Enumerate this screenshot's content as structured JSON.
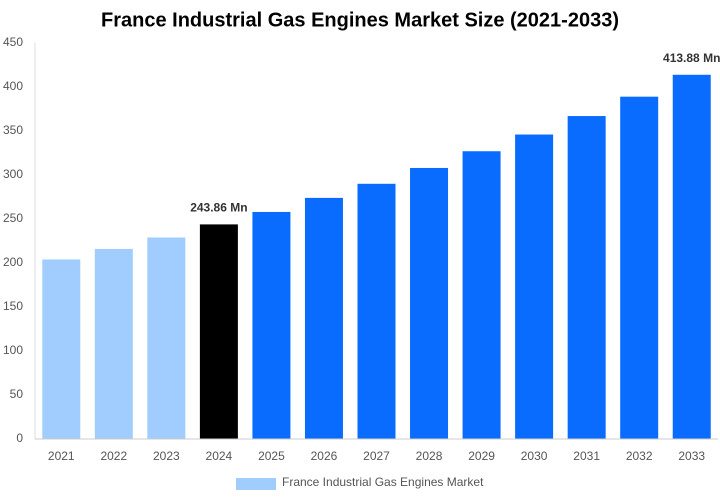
{
  "chart_data": {
    "type": "bar",
    "title": "France Industrial Gas Engines Market Size (2021-2033)",
    "categories": [
      "2021",
      "2022",
      "2023",
      "2024",
      "2025",
      "2026",
      "2027",
      "2028",
      "2029",
      "2030",
      "2031",
      "2032",
      "2033"
    ],
    "series": [
      {
        "name": "France Industrial Gas Engines Market",
        "color": "#a0cdfd",
        "values": [
          204,
          216,
          229,
          243.86,
          258,
          274,
          290,
          308,
          327,
          346,
          367,
          389,
          413.88
        ],
        "value_labels": [
          null,
          null,
          null,
          "243.86 Mn",
          null,
          null,
          null,
          null,
          null,
          null,
          null,
          null,
          "413.88 Mn"
        ],
        "colors": [
          "#a0cdfd",
          "#a0cdfd",
          "#a0cdfd",
          "#000000",
          "#0a6cff",
          "#0a6cff",
          "#0a6cff",
          "#0a6cff",
          "#0a6cff",
          "#0a6cff",
          "#0a6cff",
          "#0a6cff",
          "#0a6cff"
        ]
      }
    ],
    "ylim": [
      0,
      450
    ],
    "yticks": [
      0,
      50,
      100,
      150,
      200,
      250,
      300,
      350,
      400,
      450
    ],
    "grid": false
  }
}
